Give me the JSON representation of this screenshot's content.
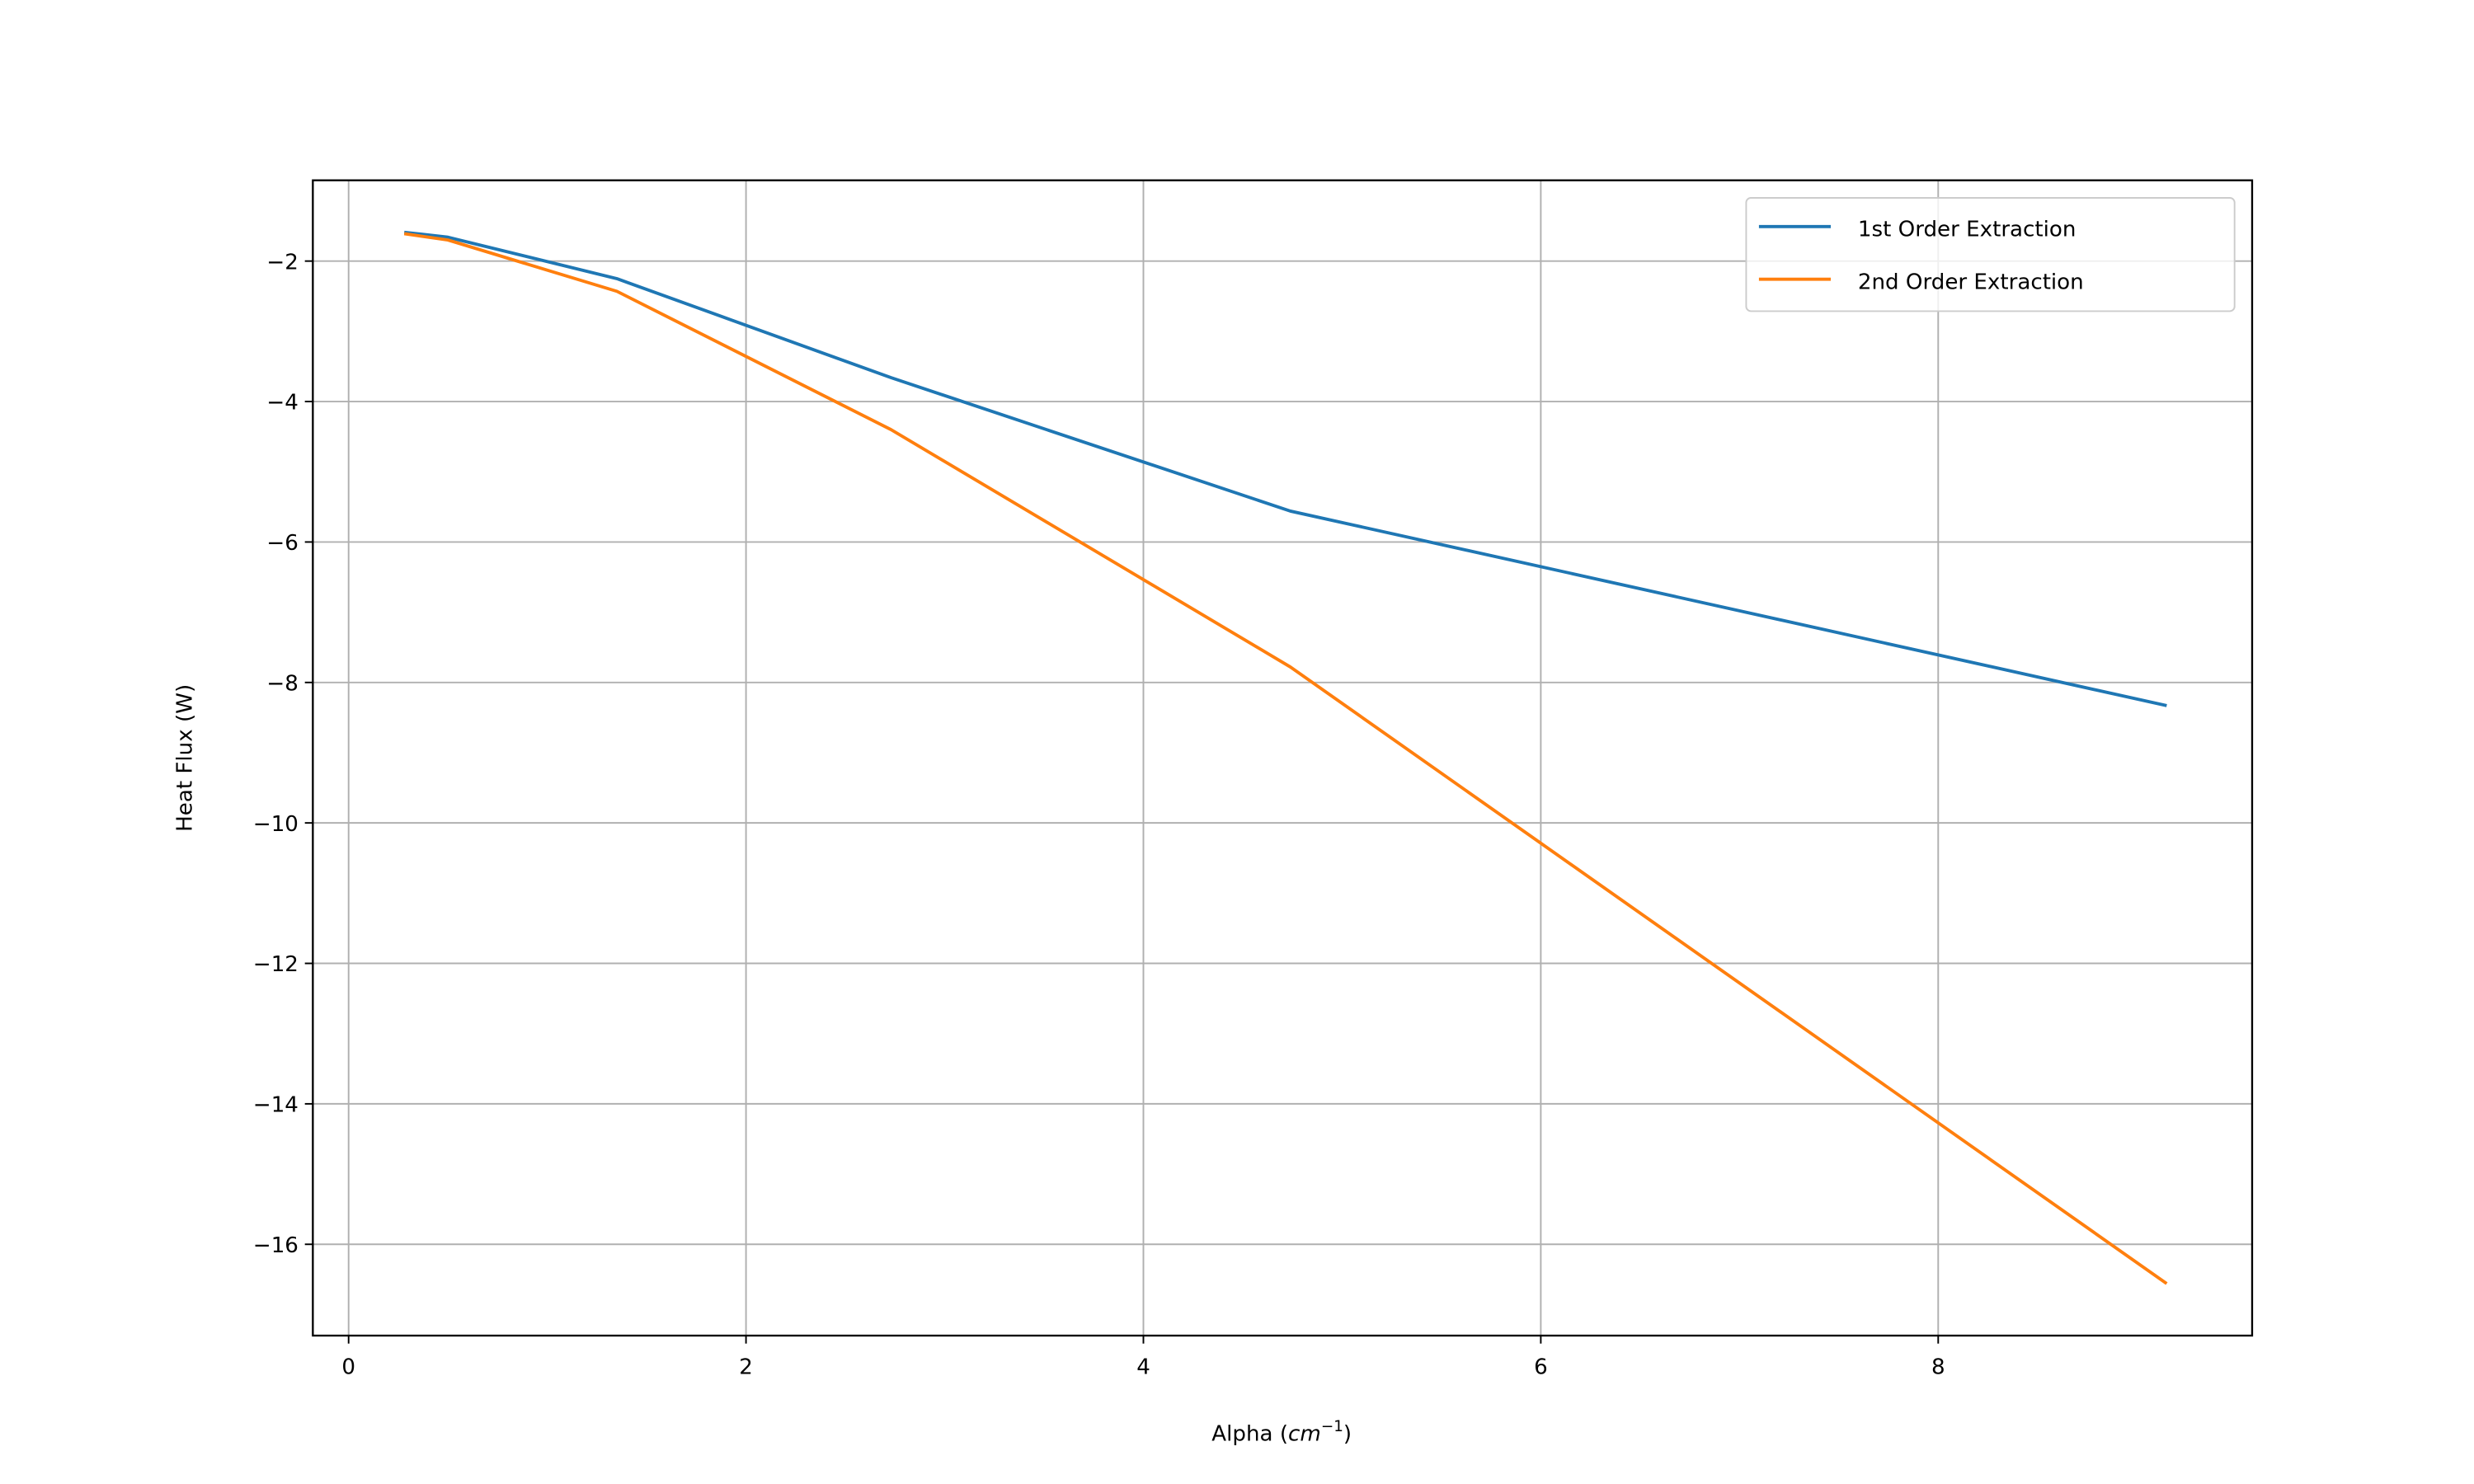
{
  "chart_data": {
    "type": "line",
    "title": "",
    "xlabel": "Alpha (",
    "xlabel_math": "cm",
    "xlabel_sup": "−1",
    "xlabel_end": ")",
    "ylabel": "Heat Flux (W)",
    "xlim": [
      -0.18,
      9.58
    ],
    "ylim": [
      -17.3,
      -0.85
    ],
    "xticks": [
      0,
      2,
      4,
      6,
      8
    ],
    "xtick_labels": [
      "0",
      "2",
      "4",
      "6",
      "8"
    ],
    "yticks": [
      -2,
      -4,
      -6,
      -8,
      -10,
      -12,
      -14,
      -16
    ],
    "ytick_labels": [
      "−2",
      "−4",
      "−6",
      "−8",
      "−10",
      "−12",
      "−14",
      "−16"
    ],
    "grid": true,
    "legend_position": "top-right",
    "series": [
      {
        "name": "1st Order Extraction",
        "color": "#1f77b4",
        "x": [
          0.28,
          0.5,
          1.35,
          2.73,
          4.74,
          9.15
        ],
        "y": [
          -1.59,
          -1.66,
          -2.25,
          -3.66,
          -5.56,
          -8.33
        ]
      },
      {
        "name": "2nd Order Extraction",
        "color": "#ff7f0e",
        "x": [
          0.28,
          0.5,
          1.35,
          2.73,
          4.74,
          9.15
        ],
        "y": [
          -1.61,
          -1.7,
          -2.43,
          -4.4,
          -7.78,
          -16.56
        ]
      }
    ]
  }
}
